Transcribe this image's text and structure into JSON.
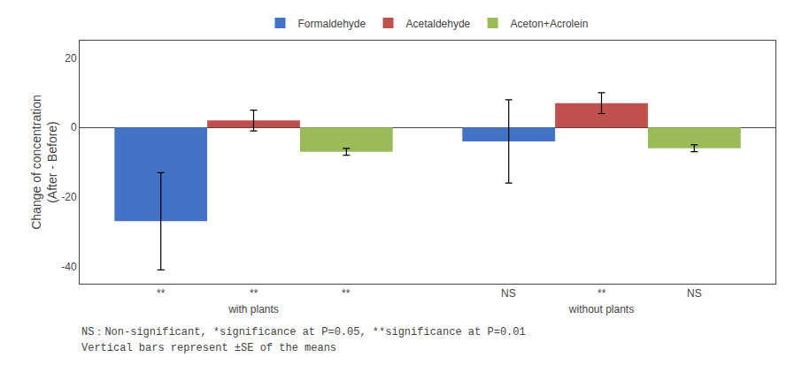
{
  "chart_data": {
    "type": "bar",
    "categories": [
      "with plants",
      "without plants"
    ],
    "series": [
      {
        "name": "Formaldehyde",
        "color": "#4472C4",
        "values": [
          -27,
          -4
        ],
        "errors": [
          14,
          12
        ]
      },
      {
        "name": "Acetaldehyde",
        "color": "#C0504D",
        "values": [
          2,
          7
        ],
        "errors": [
          3,
          3
        ]
      },
      {
        "name": "Aceton+Acrolein",
        "color": "#9BBB59",
        "values": [
          -7,
          -6
        ],
        "errors": [
          1,
          1
        ]
      }
    ],
    "y_label": "Change of concentration\n(After - Before)",
    "ylim": [
      -45,
      25
    ],
    "yticks": [
      -40,
      -20,
      0,
      20
    ],
    "grid": false,
    "legend": "top",
    "annotations": [
      {
        "category": "with plants",
        "series": "Formaldehyde",
        "text": "**"
      },
      {
        "category": "with plants",
        "series": "Acetaldehyde",
        "text": "**"
      },
      {
        "category": "with plants",
        "series": "Aceton+Acrolein",
        "text": "**"
      },
      {
        "category": "without plants",
        "series": "Formaldehyde",
        "text": "NS"
      },
      {
        "category": "without plants",
        "series": "Acetaldehyde",
        "text": "**"
      },
      {
        "category": "without plants",
        "series": "Aceton+Acrolein",
        "text": "NS"
      },
      {
        "text": "NS：Non-significant, *significance at P=0.05, **significance at P=0.01"
      },
      {
        "text": "Vertical bars represent ±SE of the means"
      }
    ]
  }
}
